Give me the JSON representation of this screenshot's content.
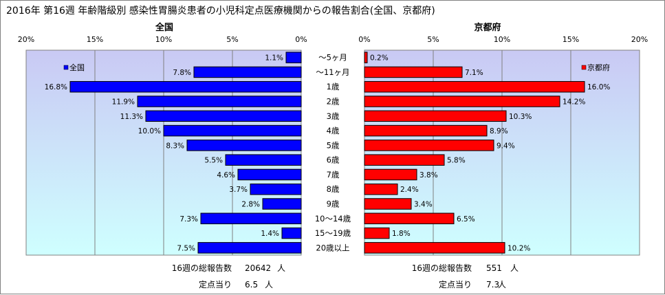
{
  "title": "2016年 第16週 年齢階級別 感染性胃腸炎患者の小児科定点医療機関からの報告割合(全国、京都府)",
  "chart_data": {
    "type": "bar",
    "categories": [
      "～5ヶ月",
      "～11ヶ月",
      "1歳",
      "2歳",
      "3歳",
      "4歳",
      "5歳",
      "6歳",
      "7歳",
      "8歳",
      "9歳",
      "10～14歳",
      "15～19歳",
      "20歳以上"
    ],
    "series": [
      {
        "name": "全国",
        "panel_title": "全国",
        "legend": "全国",
        "color": "#0000ff",
        "values": [
          1.1,
          7.8,
          16.8,
          11.9,
          11.3,
          10.0,
          8.3,
          5.5,
          4.6,
          3.7,
          2.8,
          7.3,
          1.4,
          7.5
        ],
        "labels": [
          "1.1%",
          "7.8%",
          "16.8%",
          "11.9%",
          "11.3%",
          "10.0%",
          "8.3%",
          "5.5%",
          "4.6%",
          "3.7%",
          "2.8%",
          "7.3%",
          "1.4%",
          "7.5%"
        ]
      },
      {
        "name": "京都府",
        "panel_title": "京都府",
        "legend": "京都府",
        "color": "#ff0000",
        "values": [
          0.2,
          7.1,
          16.0,
          14.2,
          10.3,
          8.9,
          9.4,
          5.8,
          3.8,
          2.4,
          3.4,
          6.5,
          1.8,
          10.2
        ],
        "labels": [
          "0.2%",
          "7.1%",
          "16.0%",
          "14.2%",
          "10.3%",
          "8.9%",
          "9.4%",
          "5.8%",
          "3.8%",
          "2.4%",
          "3.4%",
          "6.5%",
          "1.8%",
          "10.2%"
        ]
      }
    ],
    "ticks": [
      0,
      5,
      10,
      15,
      20
    ],
    "tick_labels_left": [
      "20%",
      "15%",
      "10%",
      "5%",
      "0%"
    ],
    "tick_labels_right": [
      "0%",
      "5%",
      "10%",
      "15%",
      "20%"
    ],
    "xlim": [
      0,
      20
    ],
    "grid": true,
    "legend_placement": "top"
  },
  "footer": {
    "left": {
      "total_label": "16週の総報告数",
      "total_value": "20642",
      "total_unit": "人",
      "per_label": "定点当り",
      "per_value": "6.5",
      "per_unit": "人"
    },
    "right": {
      "total_label": "16週の総報告数",
      "total_value": "551",
      "total_unit": "人",
      "per_label": "定点当り",
      "per_value": "7.3",
      "per_unit": "人"
    }
  }
}
